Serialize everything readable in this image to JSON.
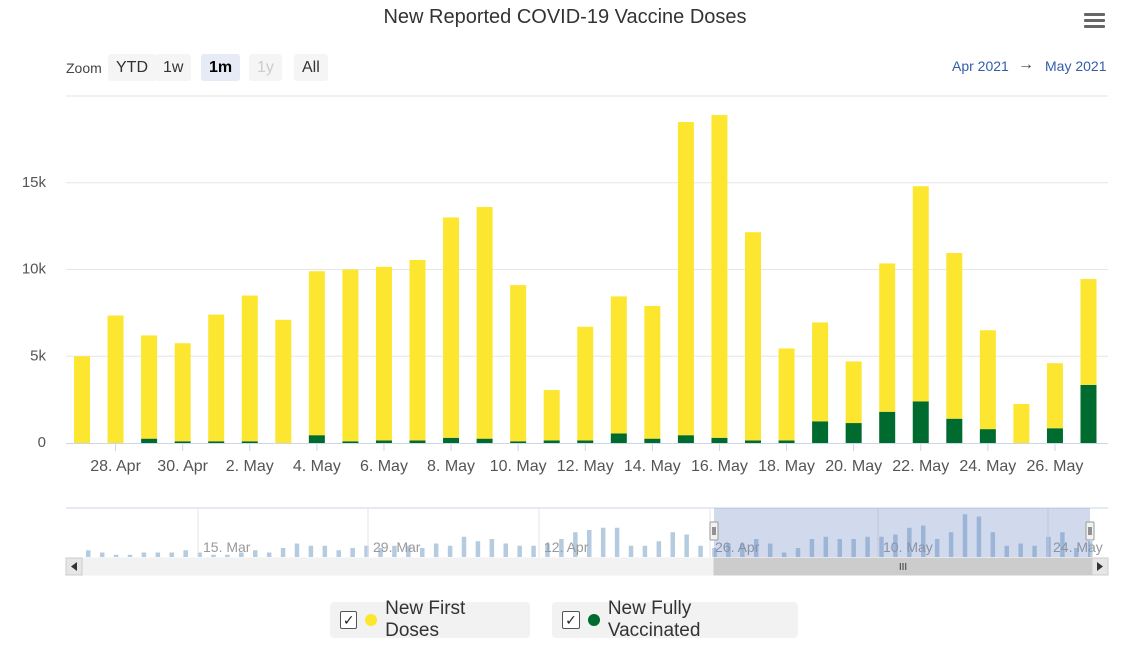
{
  "chart_data": {
    "type": "bar",
    "stacked": true,
    "title": "New Reported COVID-19 Vaccine Doses",
    "ylim": [
      0,
      20000
    ],
    "y_ticks": [
      {
        "value": 0,
        "label": "0"
      },
      {
        "value": 5000,
        "label": "5k"
      },
      {
        "value": 10000,
        "label": "10k"
      },
      {
        "value": 15000,
        "label": "15k"
      }
    ],
    "categories": [
      "27 Apr",
      "28 Apr",
      "29 Apr",
      "30 Apr",
      "1 May",
      "2 May",
      "3 May",
      "4 May",
      "5 May",
      "6 May",
      "7 May",
      "8 May",
      "9 May",
      "10 May",
      "11 May",
      "12 May",
      "13 May",
      "14 May",
      "15 May",
      "16 May",
      "17 May",
      "18 May",
      "19 May",
      "20 May",
      "21 May",
      "22 May",
      "23 May",
      "24 May",
      "25 May",
      "26 May",
      "27 May"
    ],
    "x_tick_labels": [
      {
        "index": 1,
        "label": "28. Apr"
      },
      {
        "index": 3,
        "label": "30. Apr"
      },
      {
        "index": 5,
        "label": "2. May"
      },
      {
        "index": 7,
        "label": "4. May"
      },
      {
        "index": 9,
        "label": "6. May"
      },
      {
        "index": 11,
        "label": "8. May"
      },
      {
        "index": 13,
        "label": "10. May"
      },
      {
        "index": 15,
        "label": "12. May"
      },
      {
        "index": 17,
        "label": "14. May"
      },
      {
        "index": 19,
        "label": "16. May"
      },
      {
        "index": 21,
        "label": "18. May"
      },
      {
        "index": 23,
        "label": "20. May"
      },
      {
        "index": 25,
        "label": "22. May"
      },
      {
        "index": 27,
        "label": "24. May"
      },
      {
        "index": 29,
        "label": "26. May"
      }
    ],
    "series": [
      {
        "name": "New Fully Vaccinated",
        "color": "#006b2e",
        "values": [
          0,
          0,
          250,
          100,
          100,
          100,
          0,
          450,
          100,
          150,
          150,
          300,
          250,
          100,
          150,
          150,
          550,
          250,
          450,
          300,
          150,
          150,
          1250,
          1150,
          1800,
          2400,
          1400,
          800,
          0,
          850,
          3350
        ]
      },
      {
        "name": "New First Doses",
        "color": "#fde62f",
        "values": [
          5000,
          7350,
          5950,
          5650,
          7300,
          8400,
          7100,
          9450,
          9900,
          10000,
          10400,
          12700,
          13350,
          9000,
          2900,
          6550,
          7900,
          7650,
          18050,
          18600,
          12000,
          5300,
          5700,
          3550,
          8550,
          12400,
          9550,
          5700,
          2250,
          3750,
          6100
        ]
      }
    ],
    "navigator": {
      "tick_labels": [
        "15. Mar",
        "29. Mar",
        "12. Apr",
        "26. Apr",
        "10. May",
        "24. May"
      ],
      "values": [
        3,
        2,
        1,
        1,
        2,
        2,
        2,
        3,
        2,
        1,
        1,
        2,
        3,
        2,
        4,
        6,
        5,
        5,
        3,
        4,
        5,
        4,
        5,
        5,
        4,
        6,
        5,
        9,
        7,
        8,
        6,
        5,
        5,
        6,
        8,
        11,
        12,
        13,
        13,
        5,
        5,
        7,
        11,
        10,
        5,
        4,
        6,
        6,
        8,
        6,
        2,
        4,
        8,
        9,
        8,
        8,
        9,
        9,
        10,
        13,
        14,
        8,
        11,
        19,
        18,
        11,
        5,
        6,
        5,
        9,
        11,
        4,
        7
      ]
    },
    "selected_range": {
      "from": "Apr 2021",
      "to": "May 2021"
    }
  },
  "zoom": {
    "label": "Zoom",
    "buttons": [
      "YTD",
      "1w",
      "1m",
      "1y",
      "All"
    ],
    "active": "1m",
    "disabled": "1y"
  },
  "range_arrow": "→",
  "legend": {
    "items": [
      {
        "label": "New First Doses",
        "color": "#fde62f"
      },
      {
        "label": "New Fully Vaccinated",
        "color": "#006b2e"
      }
    ],
    "check": "✓"
  },
  "navigator_handle_glyph": "III"
}
